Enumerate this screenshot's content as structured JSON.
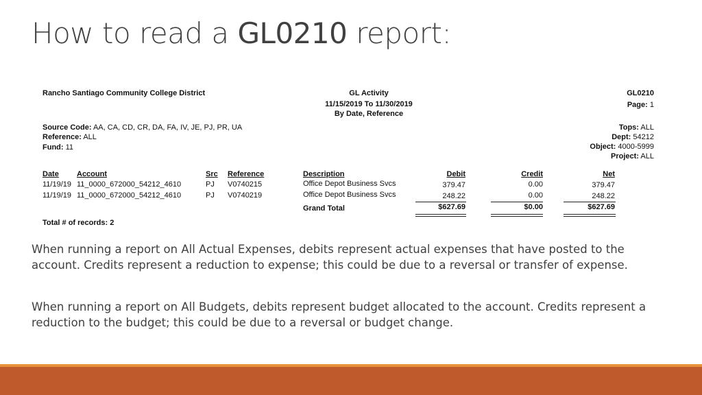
{
  "title": {
    "prefix": "How to read a ",
    "highlight": "GL0210",
    "suffix": " report:"
  },
  "report": {
    "org": "Rancho Santiago Community College District",
    "center_title": "GL Activity",
    "date_range": "11/15/2019 To 11/30/2019",
    "sort": "By Date, Reference",
    "report_id": "GL0210",
    "page_label": "Page:",
    "page_value": "1",
    "source_label": "Source Code:",
    "source_value": "AA, CA, CD, CR, DA, FA, IV, JE, PJ, PR, UA",
    "reference_label": "Reference:",
    "reference_value": "ALL",
    "fund_label": "Fund:",
    "fund_value": "11",
    "tops_label": "Tops:",
    "tops_value": "ALL",
    "dept_label": "Dept:",
    "dept_value": "54212",
    "object_label": "Object:",
    "object_value": "4000-5999",
    "project_label": "Project:",
    "project_value": "ALL",
    "columns": [
      "Date",
      "Account",
      "Src",
      "Reference",
      "Description",
      "Debit",
      "Credit",
      "Net"
    ],
    "rows": [
      [
        "11/19/19",
        "11_0000_672000_54212_4610",
        "PJ",
        "V0740215",
        "Office Depot Business Svcs",
        "379.47",
        "0.00",
        "379.47"
      ],
      [
        "11/19/19",
        "11_0000_672000_54212_4610",
        "PJ",
        "V0740219",
        "Office Depot Business Svcs",
        "248.22",
        "0.00",
        "248.22"
      ]
    ],
    "grand_total_label": "Grand Total",
    "total_debit": "$627.69",
    "total_credit": "$0.00",
    "total_net": "$627.69",
    "records_label": "Total # of records: 2"
  },
  "paragraphs": [
    "When running a report on All Actual Expenses, debits represent actual expenses that have posted to the account.  Credits represent a reduction to expense; this could be due to a reversal or transfer of expense.",
    "When running a report on All Budgets, debits represent budget allocated to the account.  Credits represent a reduction to the budget; this could be due to a reversal or budget change."
  ],
  "colors": {
    "accent_bar": "#bf5a2c",
    "accent_thin": "#e8903a",
    "text": "#404040"
  }
}
